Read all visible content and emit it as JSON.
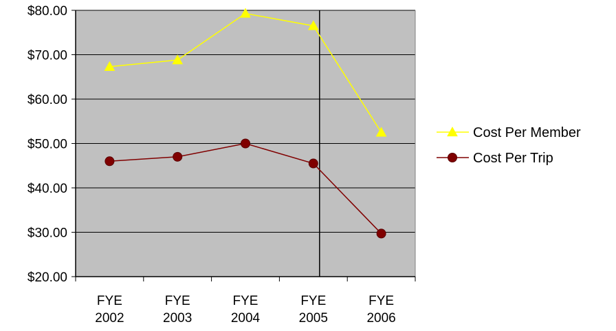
{
  "chart_data": {
    "type": "line",
    "title": "",
    "xlabel": "",
    "ylabel": "",
    "categories": [
      [
        "FYE",
        "2002"
      ],
      [
        "FYE",
        "2003"
      ],
      [
        "FYE",
        "2004"
      ],
      [
        "FYE",
        "2005"
      ],
      [
        "FYE",
        "2006"
      ]
    ],
    "ylim": [
      20,
      80
    ],
    "yticks": [
      20,
      30,
      40,
      50,
      60,
      70,
      80
    ],
    "ytick_labels": [
      "$20.00",
      "$30.00",
      "$40.00",
      "$50.00",
      "$60.00",
      "$70.00",
      "$80.00"
    ],
    "grid": "horizontal",
    "plot_background": "#c0c0c0",
    "vertical_marker_after_category": "FYE 2005",
    "legend_position": "right",
    "series": [
      {
        "name": "Cost Per Member",
        "marker": "triangle",
        "color": "#ffff00",
        "values": [
          67.3,
          68.8,
          79.3,
          76.5,
          52.5
        ]
      },
      {
        "name": "Cost Per Trip",
        "marker": "circle",
        "color": "#800000",
        "values": [
          46.0,
          47.0,
          50.0,
          45.5,
          29.7
        ]
      }
    ]
  }
}
